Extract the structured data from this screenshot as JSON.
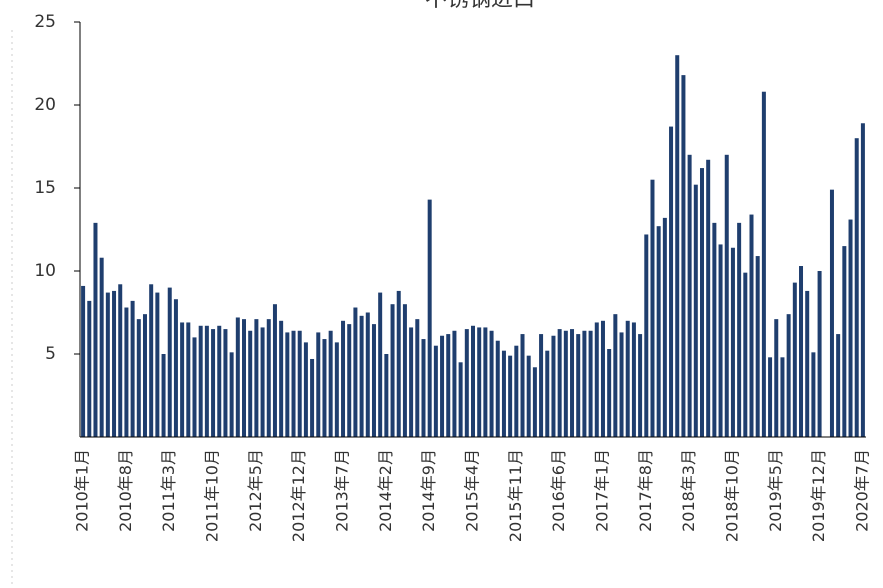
{
  "chart_data": {
    "type": "bar",
    "title": "不锈钢进口",
    "categories": [
      "2010年1月",
      null,
      null,
      null,
      null,
      null,
      null,
      "2010年8月",
      null,
      null,
      null,
      null,
      null,
      null,
      "2011年3月",
      null,
      null,
      null,
      null,
      null,
      null,
      "2011年10月",
      null,
      null,
      null,
      null,
      null,
      null,
      "2012年5月",
      null,
      null,
      null,
      null,
      null,
      null,
      "2012年12月",
      null,
      null,
      null,
      null,
      null,
      null,
      "2013年7月",
      null,
      null,
      null,
      null,
      null,
      null,
      "2014年2月",
      null,
      null,
      null,
      null,
      null,
      null,
      "2014年9月",
      null,
      null,
      null,
      null,
      null,
      null,
      "2015年4月",
      null,
      null,
      null,
      null,
      null,
      null,
      "2015年11月",
      null,
      null,
      null,
      null,
      null,
      null,
      "2016年6月",
      null,
      null,
      null,
      null,
      null,
      null,
      "2017年1月",
      null,
      null,
      null,
      null,
      null,
      null,
      "2017年8月",
      null,
      null,
      null,
      null,
      null,
      null,
      "2018年3月",
      null,
      null,
      null,
      null,
      null,
      null,
      "2018年10月",
      null,
      null,
      null,
      null,
      null,
      null,
      "2019年5月",
      null,
      null,
      null,
      null,
      null,
      null,
      "2019年12月",
      null,
      null,
      null,
      null,
      null,
      null,
      "2020年7月"
    ],
    "values": [
      9.1,
      8.2,
      12.9,
      10.8,
      8.7,
      8.8,
      9.2,
      7.8,
      8.2,
      7.1,
      7.4,
      9.2,
      8.7,
      5.0,
      9.0,
      8.3,
      6.9,
      6.9,
      6.0,
      6.7,
      6.7,
      6.5,
      6.7,
      6.5,
      5.1,
      7.2,
      7.1,
      6.4,
      7.1,
      6.6,
      7.1,
      8.0,
      7.0,
      6.3,
      6.4,
      6.4,
      5.7,
      4.7,
      6.3,
      5.9,
      6.4,
      5.7,
      7.0,
      6.8,
      7.8,
      7.3,
      7.5,
      6.8,
      8.7,
      5.0,
      8.0,
      8.8,
      8.0,
      6.6,
      7.1,
      5.9,
      14.3,
      5.5,
      6.1,
      6.2,
      6.4,
      4.5,
      6.5,
      6.7,
      6.6,
      6.6,
      6.4,
      5.8,
      5.2,
      4.9,
      5.5,
      6.2,
      4.9,
      4.2,
      6.2,
      5.2,
      6.1,
      6.5,
      6.4,
      6.5,
      6.2,
      6.4,
      6.4,
      6.9,
      7.0,
      5.3,
      7.4,
      6.3,
      7.0,
      6.9,
      6.2,
      12.2,
      15.5,
      12.7,
      13.2,
      18.7,
      23.0,
      21.8,
      17.0,
      15.2,
      16.2,
      16.7,
      12.9,
      11.6,
      17.0,
      11.4,
      12.9,
      9.9,
      13.4,
      10.9,
      20.8,
      4.8,
      7.1,
      4.8,
      7.4,
      9.3,
      10.3,
      8.8,
      5.1,
      10.0,
      null,
      14.9,
      6.2,
      11.5,
      13.1,
      18.0,
      18.9
    ],
    "color": "#1f3e6e",
    "ylim": [
      0,
      25
    ],
    "yticks": [
      5,
      10,
      15,
      20,
      25
    ],
    "grid": false
  }
}
